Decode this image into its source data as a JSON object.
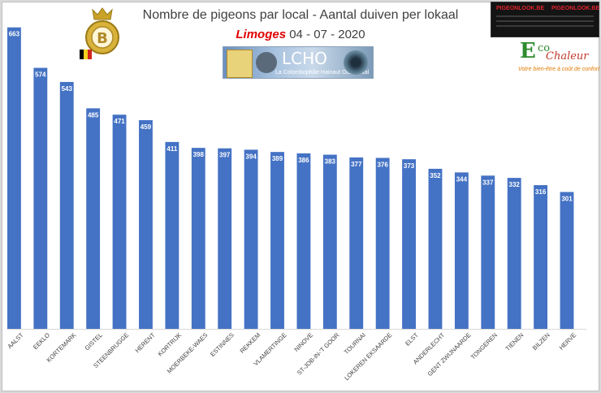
{
  "header": {
    "title": "Nombre de pigeons par local - Aantal duiven per lokaal",
    "city": "Limoges",
    "date": "04 - 07 - 2020"
  },
  "sponsors": {
    "lcho_name": "LCHO",
    "lcho_sub": "La Colombophilie Hainaut Occidental",
    "ad_left": "PIGEONLOOK.BE",
    "ad_right": "PIGEONLOOK.BE",
    "eco_e": "E",
    "eco_co": "co",
    "eco_chaleur": "Chaleur",
    "eco_tagline": "Votre bien-être à coût de confort"
  },
  "colors": {
    "bar": "#4472c4",
    "baseline": "#d9d9d9",
    "value_label": "#ffffff"
  },
  "chart_data": {
    "type": "bar",
    "title": "Nombre de pigeons par local - Aantal duiven per lokaal",
    "categories": [
      "AALST",
      "EEKLO",
      "KORTEMARK",
      "GISTEL",
      "STEENBRUGGE",
      "HERENT",
      "KORTRIJK",
      "MOERBEKE-WAES",
      "ESTINNES",
      "REKKEM",
      "VLAMERTINGE",
      "NINOVE",
      "ST-JOB-IN-'T GOOR",
      "TOURNAI",
      "LOKEREN EKSAARDE",
      "ELST",
      "ANDERLECHT",
      "GENT ZWIJNAARDE",
      "TONGEREN",
      "TIENEN",
      "BILZEN",
      "HERVE"
    ],
    "series": [
      {
        "values": [
          663,
          574,
          543,
          485,
          471,
          459,
          411,
          398,
          397,
          394,
          389,
          386,
          383,
          377,
          376,
          373,
          352,
          344,
          337,
          332,
          316,
          301
        ]
      },
      {
        "values": [
          0,
          0,
          0,
          0,
          0,
          0,
          0,
          0,
          0,
          0,
          0,
          0,
          0,
          0,
          0,
          0,
          0,
          0,
          0,
          0,
          0,
          0
        ]
      }
    ],
    "ylim": [
      0,
      700
    ],
    "grid": false,
    "legend": "none",
    "data_labels": true
  }
}
